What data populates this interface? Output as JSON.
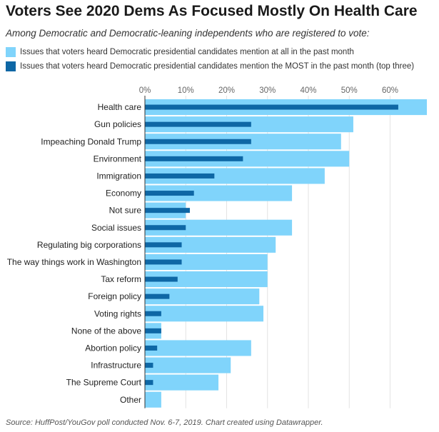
{
  "chart_data": {
    "type": "bar",
    "orientation": "horizontal",
    "title": "Voters See 2020 Dems As Focused Mostly On Health Care",
    "subtitle": "Among Democratic and Democratic-leaning independents who are registered to vote:",
    "source": "Source: HuffPost/YouGov poll conducted Nov. 6-7, 2019. Chart created using Datawrapper.",
    "categories": [
      "Health care",
      "Gun policies",
      "Impeaching Donald Trump",
      "Environment",
      "Immigration",
      "Economy",
      "Not sure",
      "Social issues",
      "Regulating big corporations",
      "The way things work in Washington",
      "Tax reform",
      "Foreign policy",
      "Voting rights",
      "None of the above",
      "Abortion policy",
      "Infrastructure",
      "The Supreme Court",
      "Other"
    ],
    "series": [
      {
        "name": "Issues that voters heard Democratic presidential candidates mention at all in the past month",
        "color": "#80d4fb",
        "values": [
          69,
          51,
          48,
          50,
          44,
          36,
          10,
          36,
          32,
          30,
          30,
          28,
          29,
          4,
          26,
          21,
          18,
          4
        ]
      },
      {
        "name": "Issues that voters heard Democratic presidential candidates mention the MOST in the past month (top three)",
        "color": "#0e67a5",
        "values": [
          62,
          26,
          26,
          24,
          17,
          12,
          11,
          10,
          9,
          9,
          8,
          6,
          4,
          4,
          3,
          2,
          2,
          0
        ]
      }
    ],
    "xlim": [
      0,
      69
    ],
    "ticks": [
      0,
      10,
      20,
      30,
      40,
      50,
      60
    ],
    "tick_labels": [
      "0%",
      "10%",
      "20%",
      "30%",
      "40%",
      "50%",
      "60%"
    ],
    "grid": true,
    "legend": "top-left"
  }
}
